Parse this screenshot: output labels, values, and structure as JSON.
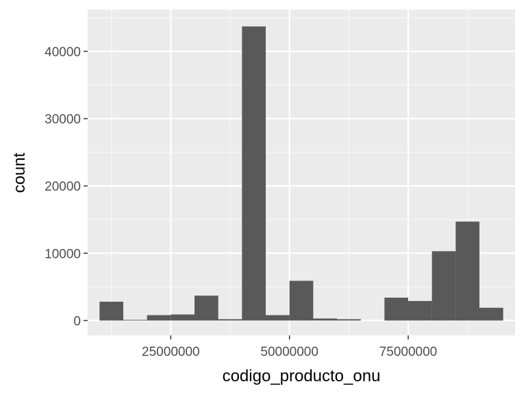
{
  "chart_data": {
    "type": "bar",
    "title": "",
    "xlabel": "codigo_producto_onu",
    "ylabel": "count",
    "xlim": [
      7500000,
      97500000
    ],
    "ylim": [
      -2200,
      46200
    ],
    "x_ticks": [
      25000000,
      50000000,
      75000000
    ],
    "x_tick_labels": [
      "25000000",
      "50000000",
      "75000000"
    ],
    "y_ticks": [
      0,
      10000,
      20000,
      30000,
      40000
    ],
    "y_tick_labels": [
      "0",
      "10000",
      "20000",
      "30000",
      "40000"
    ],
    "bin_width": 5000000,
    "bins": [
      {
        "x0": 10000000,
        "x1": 15000000,
        "count": 2800
      },
      {
        "x0": 15000000,
        "x1": 20000000,
        "count": 100
      },
      {
        "x0": 20000000,
        "x1": 25000000,
        "count": 800
      },
      {
        "x0": 25000000,
        "x1": 30000000,
        "count": 900
      },
      {
        "x0": 30000000,
        "x1": 35000000,
        "count": 3700
      },
      {
        "x0": 35000000,
        "x1": 40000000,
        "count": 200
      },
      {
        "x0": 40000000,
        "x1": 45000000,
        "count": 43700
      },
      {
        "x0": 45000000,
        "x1": 50000000,
        "count": 800
      },
      {
        "x0": 50000000,
        "x1": 55000000,
        "count": 5900
      },
      {
        "x0": 55000000,
        "x1": 60000000,
        "count": 300
      },
      {
        "x0": 60000000,
        "x1": 65000000,
        "count": 200
      },
      {
        "x0": 65000000,
        "x1": 70000000,
        "count": 0
      },
      {
        "x0": 70000000,
        "x1": 75000000,
        "count": 3400
      },
      {
        "x0": 75000000,
        "x1": 80000000,
        "count": 2900
      },
      {
        "x0": 80000000,
        "x1": 85000000,
        "count": 10300
      },
      {
        "x0": 85000000,
        "x1": 90000000,
        "count": 14700
      },
      {
        "x0": 90000000,
        "x1": 95000000,
        "count": 1900
      }
    ],
    "grid": true,
    "legend": "none"
  },
  "colors": {
    "panel_background": "#ebebeb",
    "grid_major": "#ffffff",
    "grid_minor": "#f7f7f7",
    "bar_fill": "#595959",
    "tick_mark": "#333333"
  }
}
